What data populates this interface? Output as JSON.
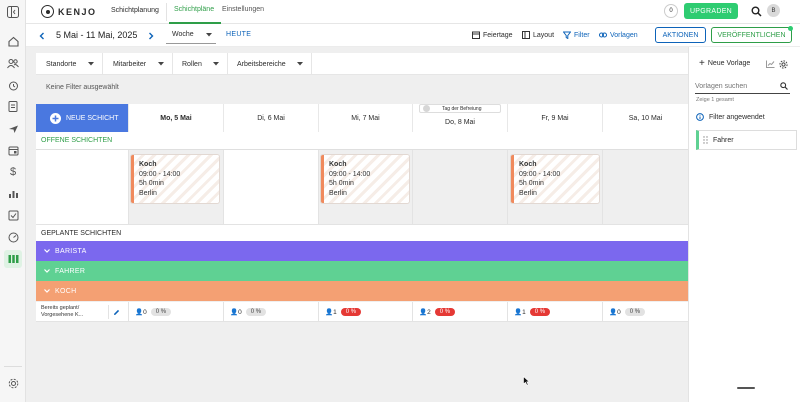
{
  "app": {
    "logo_text": "KENJO",
    "section_title": "Schichtplanung"
  },
  "tabs": [
    {
      "label": "Schichtpläne",
      "active": true
    },
    {
      "label": "Einstellungen",
      "active": false
    }
  ],
  "topbar": {
    "counter": "0",
    "upgrade_label": "UPGRADEN",
    "avatar_initial": "B"
  },
  "toolbar": {
    "date_range": "5 Mai - 11 Mai, 2025",
    "view_select": "Woche",
    "today_label": "HEUTE",
    "holidays_label": "Feiertage",
    "layout_label": "Layout",
    "filter_label": "Filter",
    "templates_label": "Vorlagen",
    "actions_label": "AKTIONEN",
    "publish_label": "VERÖFFENTLICHEN"
  },
  "filters": {
    "dropdowns": [
      "Standorte",
      "Mitarbeiter",
      "Rollen",
      "Arbeitsbereiche"
    ],
    "none_applied": "Keine Filter ausgewählt"
  },
  "schedule": {
    "new_shift_label": "NEUE SCHICHT",
    "exemption_toggle_label": "Tag der Befreiung",
    "days": [
      "Mo, 5 Mai",
      "Di, 6 Mai",
      "Mi, 7 Mai",
      "Do, 8 Mai",
      "Fr, 9 Mai",
      "Sa, 10 Mai"
    ],
    "open_shifts_label": "OFFENE SCHICHTEN",
    "open_shifts": [
      {
        "role": "Koch",
        "time": "09:00 - 14:00",
        "duration": "5h 0min",
        "location": "Berlin"
      },
      {
        "role": "Koch",
        "time": "09:00 - 14:00",
        "duration": "5h 0min",
        "location": "Berlin"
      },
      {
        "role": "Koch",
        "time": "09:00 - 14:00",
        "duration": "5h 0min",
        "location": "Berlin"
      }
    ],
    "planned_shifts_label": "GEPLANTE SCHICHTEN",
    "groups": [
      {
        "label": "BARISTA",
        "color": "#7b68ee"
      },
      {
        "label": "FAHRER",
        "color": "#5fd193"
      },
      {
        "label": "KOCH",
        "color": "#f4a073"
      }
    ],
    "stats_label": "Bereits geplant/ Vorgesehene K...",
    "stats": [
      {
        "count": "0",
        "percent": "0 %",
        "alert": false
      },
      {
        "count": "0",
        "percent": "0 %",
        "alert": false
      },
      {
        "count": "1",
        "percent": "0 %",
        "alert": true
      },
      {
        "count": "2",
        "percent": "0 %",
        "alert": true
      },
      {
        "count": "1",
        "percent": "0 %",
        "alert": true
      },
      {
        "count": "0",
        "percent": "0 %",
        "alert": false
      }
    ]
  },
  "templates_panel": {
    "new_template_label": "Neue Vorlage",
    "search_placeholder": "Vorlagen suchen",
    "count_text": "Zeige 1 gesamt",
    "filter_info": "Filter angewendet",
    "items": [
      {
        "label": "Fahrer"
      }
    ]
  },
  "colors": {
    "primary": "#0d63b9",
    "upgrade": "#2ecc71",
    "accent_green": "#2e9e48",
    "koch_card_border": "#f08a5d"
  }
}
